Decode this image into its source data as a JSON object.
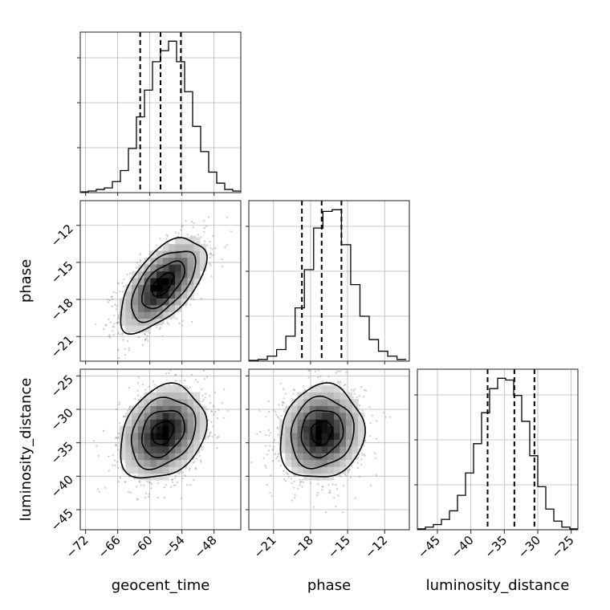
{
  "chart_data": {
    "type": "corner",
    "grid": true,
    "parameters": [
      {
        "label": "geocent_time",
        "range": [
          -73,
          -43
        ],
        "ticks": [
          -72,
          -66,
          -60,
          -54,
          -48
        ],
        "tick_labels": [
          "−72",
          "−66",
          "−60",
          "−54",
          "−48"
        ],
        "quantiles": [
          -61.8,
          -58.0,
          -54.2
        ]
      },
      {
        "label": "phase",
        "range": [
          -23,
          -10
        ],
        "ticks": [
          -21,
          -18,
          -15,
          -12
        ],
        "tick_labels": [
          "−21",
          "−18",
          "−15",
          "−12"
        ],
        "quantiles": [
          -18.7,
          -17.1,
          -15.5
        ]
      },
      {
        "label": "luminosity_distance",
        "range": [
          -48,
          -24
        ],
        "ticks": [
          -45,
          -40,
          -35,
          -30,
          -25
        ],
        "tick_labels": [
          "−45",
          "−40",
          "−35",
          "−30",
          "−25"
        ],
        "quantiles": [
          -37.5,
          -33.5,
          -30.5
        ]
      }
    ],
    "histograms": [
      {
        "bin_start": -73,
        "bin_width": 1.5,
        "counts": [
          0.5,
          1,
          2,
          3,
          7,
          14,
          28,
          48,
          65,
          83,
          90,
          96,
          83,
          64,
          42,
          26,
          13,
          6,
          2,
          1
        ]
      },
      {
        "bin_start": -23,
        "bin_width": 0.75,
        "counts": [
          0.5,
          1,
          3,
          7,
          15,
          32,
          55,
          80,
          90,
          91,
          70,
          46,
          27,
          13,
          6,
          3,
          1
        ]
      },
      {
        "bin_start": -48,
        "bin_width": 1.2,
        "counts": [
          0.5,
          1.5,
          3,
          6,
          11,
          20,
          33,
          50,
          68,
          82,
          88,
          87,
          78,
          63,
          43,
          25,
          12,
          5,
          1.5,
          0.5
        ]
      }
    ],
    "pairs": [
      {
        "x": "geocent_time",
        "y": "phase",
        "center": [
          -57.6,
          -16.8
        ],
        "sd": [
          4.0,
          1.9
        ],
        "correlation": 0.6
      },
      {
        "x": "geocent_time",
        "y": "luminosity_distance",
        "center": [
          -57.6,
          -33.5
        ],
        "sd": [
          4.0,
          3.5
        ],
        "correlation": 0.25
      },
      {
        "x": "phase",
        "y": "luminosity_distance",
        "center": [
          -17.1,
          -33.5
        ],
        "sd": [
          1.7,
          3.5
        ],
        "correlation": 0.1
      }
    ]
  }
}
